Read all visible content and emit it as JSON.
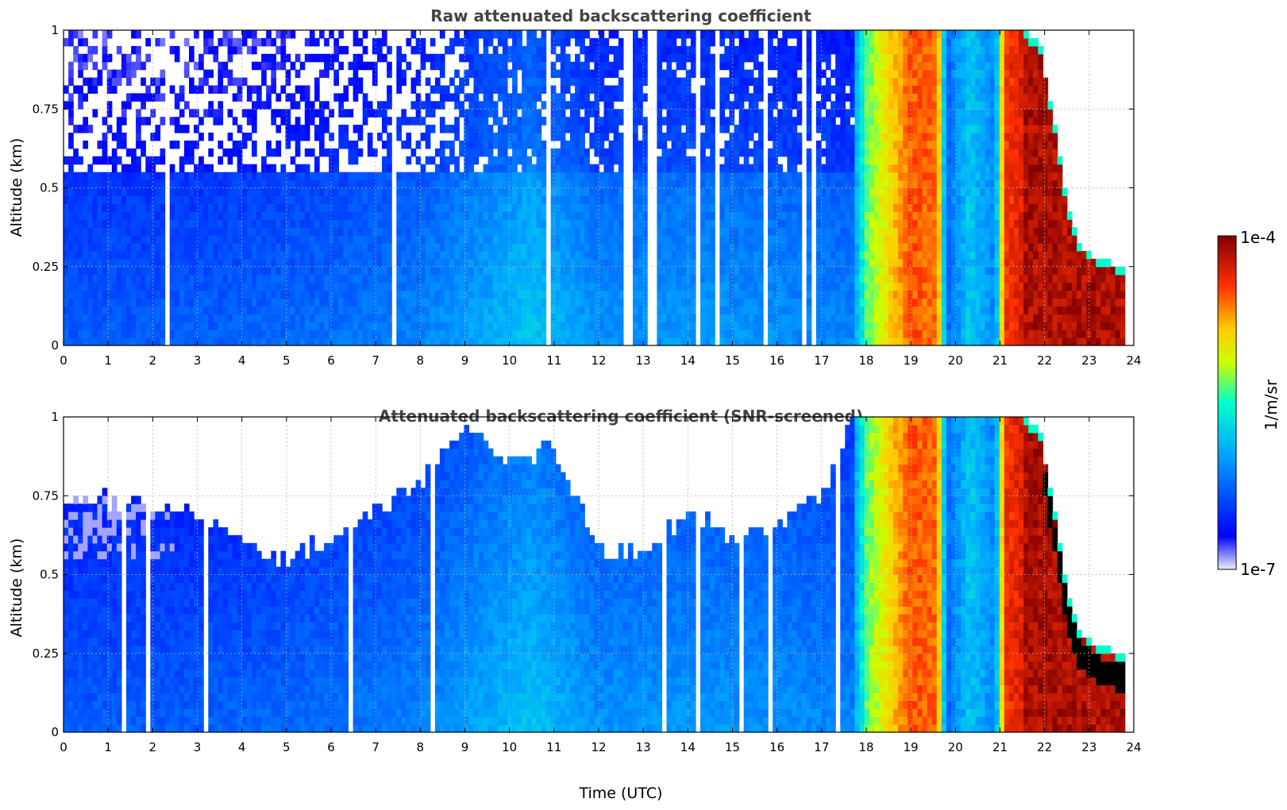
{
  "chart_data": [
    {
      "type": "heatmap",
      "title": "Raw attenuated backscattering coefficient",
      "xlabel": "",
      "ylabel": "Altitude (km)",
      "xlim": [
        0,
        24
      ],
      "ylim": [
        0,
        1
      ],
      "x_ticks": [
        "0",
        "1",
        "2",
        "3",
        "4",
        "5",
        "6",
        "7",
        "8",
        "9",
        "10",
        "11",
        "12",
        "13",
        "14",
        "15",
        "16",
        "17",
        "18",
        "19",
        "20",
        "21",
        "22",
        "23",
        "24"
      ],
      "y_ticks": [
        "0",
        "0.25",
        "0.5",
        "0.75",
        "1"
      ],
      "grid": true,
      "z_profile": [
        {
          "t": 0,
          "level": 0.24
        },
        {
          "t": 2,
          "level": 0.24
        },
        {
          "t": 4,
          "level": 0.25
        },
        {
          "t": 6,
          "level": 0.27
        },
        {
          "t": 8,
          "level": 0.3
        },
        {
          "t": 9.5,
          "level": 0.36
        },
        {
          "t": 10.5,
          "level": 0.4
        },
        {
          "t": 12,
          "level": 0.32
        },
        {
          "t": 14,
          "level": 0.33
        },
        {
          "t": 16,
          "level": 0.32
        },
        {
          "t": 17.7,
          "level": 0.3
        },
        {
          "t": 18.0,
          "level": 0.55
        },
        {
          "t": 18.6,
          "level": 0.72
        },
        {
          "t": 19.0,
          "level": 0.82
        },
        {
          "t": 19.6,
          "level": 0.8
        },
        {
          "t": 19.8,
          "level": 0.25
        },
        {
          "t": 20.3,
          "level": 0.4
        },
        {
          "t": 20.9,
          "level": 0.3
        },
        {
          "t": 21.1,
          "level": 0.85
        },
        {
          "t": 21.5,
          "level": 0.9
        },
        {
          "t": 22.5,
          "level": 0.97
        },
        {
          "t": 23.8,
          "level": 0.97
        }
      ],
      "cloud_top_km": [
        {
          "t": 21.5,
          "z": 1.0
        },
        {
          "t": 21.9,
          "z": 0.95
        },
        {
          "t": 22.2,
          "z": 0.72
        },
        {
          "t": 22.5,
          "z": 0.45
        },
        {
          "t": 22.8,
          "z": 0.32
        },
        {
          "t": 23.2,
          "z": 0.27
        },
        {
          "t": 23.8,
          "z": 0.25
        }
      ]
    },
    {
      "type": "heatmap",
      "title": "Attenuated backscattering coefficient (SNR-screened)",
      "xlabel": "Time (UTC)",
      "ylabel": "Altitude (km)",
      "xlim": [
        0,
        24
      ],
      "ylim": [
        0,
        1
      ],
      "x_ticks": [
        "0",
        "1",
        "2",
        "3",
        "4",
        "5",
        "6",
        "7",
        "8",
        "9",
        "10",
        "11",
        "12",
        "13",
        "14",
        "15",
        "16",
        "17",
        "18",
        "19",
        "20",
        "21",
        "22",
        "23",
        "24"
      ],
      "y_ticks": [
        "0",
        "0.25",
        "0.5",
        "0.75",
        "1"
      ],
      "grid": true,
      "screened_top_km": [
        {
          "t": 0,
          "z": 0.72
        },
        {
          "t": 1,
          "z": 0.74
        },
        {
          "t": 2,
          "z": 0.72
        },
        {
          "t": 3,
          "z": 0.7
        },
        {
          "t": 4,
          "z": 0.62
        },
        {
          "t": 5,
          "z": 0.55
        },
        {
          "t": 6,
          "z": 0.62
        },
        {
          "t": 7,
          "z": 0.7
        },
        {
          "t": 8,
          "z": 0.8
        },
        {
          "t": 9,
          "z": 0.98
        },
        {
          "t": 10,
          "z": 0.85
        },
        {
          "t": 11,
          "z": 0.9
        },
        {
          "t": 12,
          "z": 0.58
        },
        {
          "t": 13,
          "z": 0.57
        },
        {
          "t": 14,
          "z": 0.7
        },
        {
          "t": 15,
          "z": 0.62
        },
        {
          "t": 16,
          "z": 0.65
        },
        {
          "t": 17,
          "z": 0.75
        },
        {
          "t": 17.7,
          "z": 1.0
        }
      ]
    }
  ],
  "colorbar": {
    "label": "1/m/sr",
    "max_label": "1e-4",
    "min_label": "1e-7",
    "colormap": [
      "#ececff",
      "#0000ff",
      "#00ffff",
      "#ffff00",
      "#ff0000",
      "#800000"
    ]
  }
}
